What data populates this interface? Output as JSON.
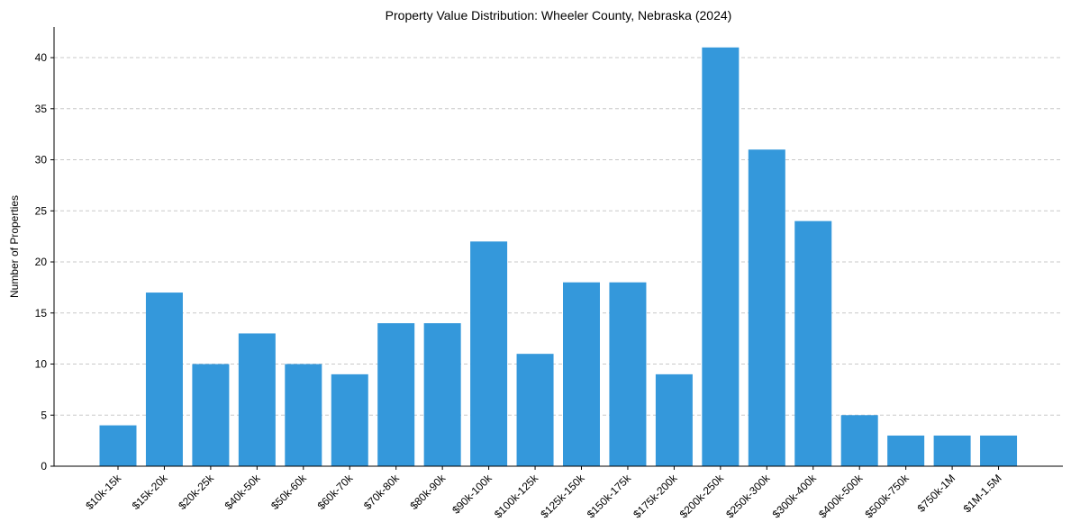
{
  "chart_data": {
    "type": "bar",
    "title": "Property Value Distribution: Wheeler County, Nebraska (2024)",
    "xlabel": "",
    "ylabel": "Number of Properties",
    "categories": [
      "$10k-15k",
      "$15k-20k",
      "$20k-25k",
      "$40k-50k",
      "$50k-60k",
      "$60k-70k",
      "$70k-80k",
      "$80k-90k",
      "$90k-100k",
      "$100k-125k",
      "$125k-150k",
      "$150k-175k",
      "$175k-200k",
      "$200k-250k",
      "$250k-300k",
      "$300k-400k",
      "$400k-500k",
      "$500k-750k",
      "$750k-1M",
      "$1M-1.5M"
    ],
    "values": [
      4,
      17,
      10,
      13,
      10,
      9,
      14,
      14,
      22,
      11,
      18,
      18,
      9,
      41,
      31,
      24,
      5,
      3,
      3,
      3
    ],
    "ylim": [
      0,
      43
    ],
    "yticks": [
      0,
      5,
      10,
      15,
      20,
      25,
      30,
      35,
      40
    ],
    "grid": "horizontal dashed",
    "bar_color": "#3498db"
  }
}
